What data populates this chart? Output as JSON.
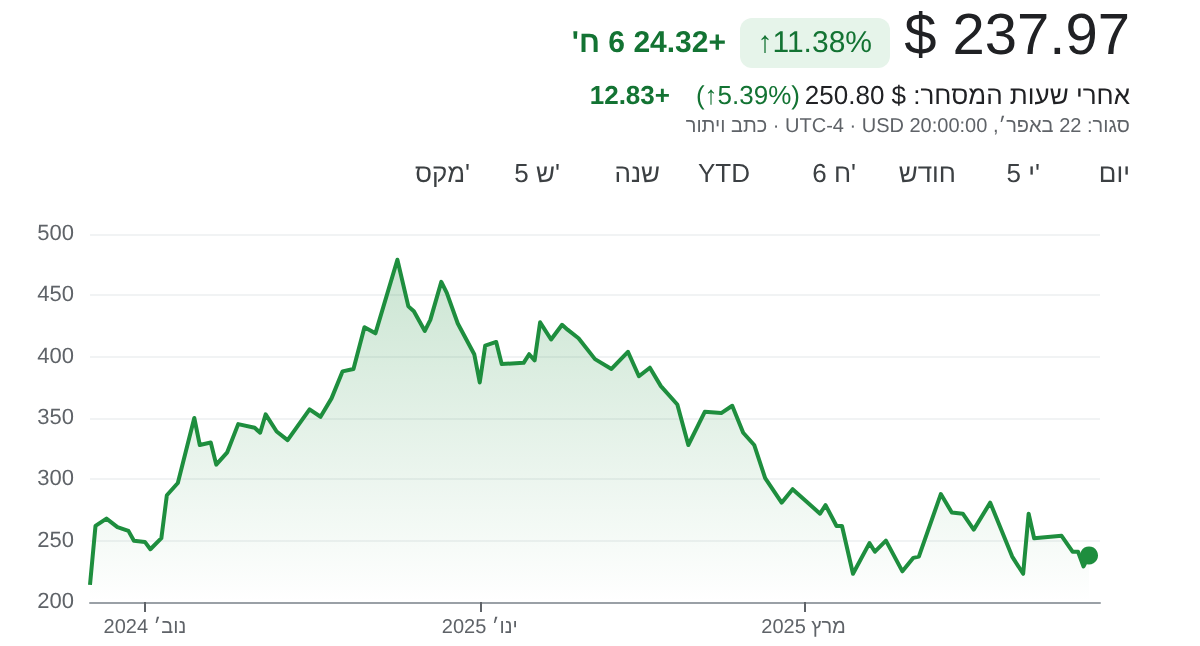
{
  "chart_data": {
    "type": "area",
    "title": "$ 237.97",
    "annotations": [
      "11.38%↑",
      "+24.32 6 ח'",
      "אחרי שעות המסחר: $ 250.80",
      "(5.39%↑)",
      "+12.83",
      "סגור: 22 באפר׳, 20:00:00 UTC-4 · USD · כתב ויתור",
      "יום",
      "5 י'",
      "חודש",
      "6 ח'",
      "YTD",
      "שנה",
      "5 ש'",
      "מקס'"
    ],
    "x": [
      "2024-10-22",
      "2024-10-23",
      "2024-10-25",
      "2024-10-27",
      "2024-10-29",
      "2024-10-30",
      "2024-11-01",
      "2024-11-02",
      "2024-11-04",
      "2024-11-05",
      "2024-11-07",
      "2024-11-10",
      "2024-11-11",
      "2024-11-13",
      "2024-11-14",
      "2024-11-16",
      "2024-11-18",
      "2024-11-21",
      "2024-11-22",
      "2024-11-23",
      "2024-11-25",
      "2024-11-27",
      "2024-12-01",
      "2024-12-03",
      "2024-12-05",
      "2024-12-07",
      "2024-12-09",
      "2024-12-11",
      "2024-12-13",
      "2024-12-17",
      "2024-12-19",
      "2024-12-20",
      "2024-12-22",
      "2024-12-23",
      "2024-12-25",
      "2024-12-26",
      "2024-12-28",
      "2024-12-31",
      "2025-01-01",
      "2025-01-02",
      "2025-01-04",
      "2025-01-05",
      "2025-01-09",
      "2025-01-10",
      "2025-01-11",
      "2025-01-12",
      "2025-01-14",
      "2025-01-16",
      "2025-01-17",
      "2025-01-19",
      "2025-01-22",
      "2025-01-25",
      "2025-01-28",
      "2025-01-30",
      "2025-02-01",
      "2025-02-03",
      "2025-02-06",
      "2025-02-08",
      "2025-02-11",
      "2025-02-14",
      "2025-02-16",
      "2025-02-18",
      "2025-02-20",
      "2025-02-22",
      "2025-02-25",
      "2025-02-27",
      "2025-03-04",
      "2025-03-05",
      "2025-03-07",
      "2025-03-08",
      "2025-03-10",
      "2025-03-13",
      "2025-03-14",
      "2025-03-16",
      "2025-03-19",
      "2025-03-21",
      "2025-03-22",
      "2025-03-26",
      "2025-03-28",
      "2025-03-30",
      "2025-04-01",
      "2025-04-04",
      "2025-04-08",
      "2025-04-10",
      "2025-04-11",
      "2025-04-12",
      "2025-04-17",
      "2025-04-19",
      "2025-04-20",
      "2025-04-21",
      "2025-04-22"
    ],
    "values": [
      214,
      262,
      268,
      261,
      258,
      250,
      249,
      243,
      252,
      287,
      297,
      350,
      328,
      330,
      312,
      322,
      345,
      342,
      338,
      353,
      339,
      332,
      357,
      351,
      366,
      388,
      390,
      424,
      419,
      479,
      441,
      437,
      421,
      430,
      461,
      452,
      427,
      402,
      379,
      409,
      412,
      394,
      395,
      402,
      397,
      428,
      414,
      426,
      422,
      415,
      398,
      390,
      404,
      384,
      391,
      376,
      361,
      328,
      355,
      354,
      360,
      338,
      328,
      301,
      281,
      292,
      272,
      279,
      262,
      262,
      223,
      248,
      241,
      250,
      225,
      236,
      237,
      288,
      273,
      272,
      259,
      281,
      237,
      223,
      272,
      252,
      254,
      241,
      241,
      229,
      238
    ],
    "color": "#1e8e3e",
    "xlim": [
      "2024-10-22",
      "2025-04-24"
    ],
    "xticks": [
      {
        "value": "2024-11-01",
        "label": "נוב׳ 2024"
      },
      {
        "value": "2025-01-01",
        "label": "ינו׳ 2025"
      },
      {
        "value": "2025-03-01",
        "label": "מרץ 2025"
      }
    ],
    "ylim": [
      200,
      500
    ],
    "yticks": [
      200,
      250,
      300,
      350,
      400,
      450,
      500
    ],
    "grid": "y",
    "marker": "none",
    "line_style": "solid"
  }
}
